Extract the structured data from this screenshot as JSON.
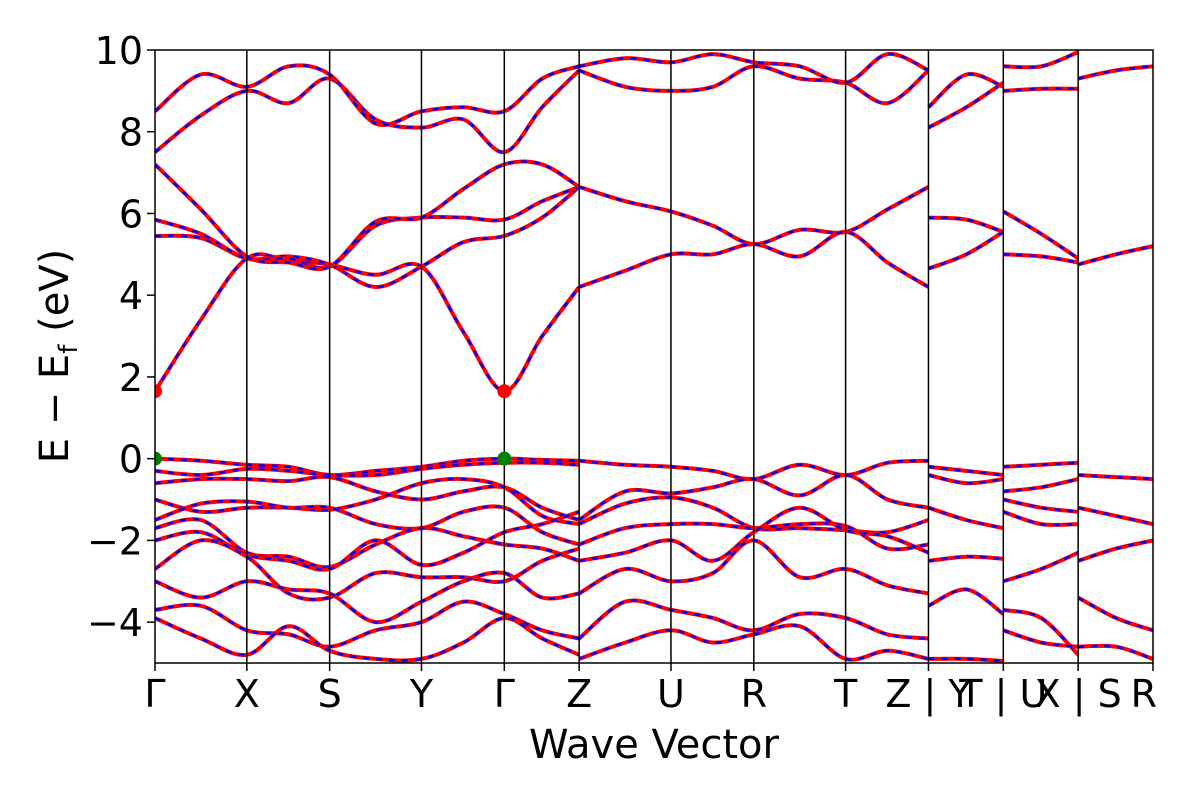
{
  "chart_data": {
    "type": "line",
    "xlabel": "Wave Vector",
    "ylabel_main": "E − E",
    "ylabel_sub": "f",
    "ylabel_unit": " (eV)",
    "ylim": [
      -5,
      10
    ],
    "yticks": [
      -4,
      -2,
      0,
      2,
      4,
      6,
      8,
      10
    ],
    "ytick_labels": [
      "−4",
      "−2",
      "0",
      "2",
      "4",
      "6",
      "8",
      "10"
    ],
    "xlim": [
      0,
      100
    ],
    "kpath": [
      {
        "label": "Γ",
        "x": 0
      },
      {
        "label": "X",
        "x": 9.2
      },
      {
        "label": "S",
        "x": 17.5
      },
      {
        "label": "Y",
        "x": 26.7
      },
      {
        "label": "Γ",
        "x": 35.0
      },
      {
        "label": "Z",
        "x": 42.5
      },
      {
        "label": "U",
        "x": 51.7
      },
      {
        "label": "R",
        "x": 60.0
      },
      {
        "label": "T",
        "x": 69.2
      },
      {
        "label": "Z|Y",
        "x": 77.5
      },
      {
        "label": "T|U",
        "x": 85.0
      },
      {
        "label": "X|S",
        "x": 92.5
      },
      {
        "label": "R",
        "x": 100
      }
    ],
    "series_colors": {
      "primary": "#ff0000",
      "overlay": "#0000ff"
    },
    "markers": [
      {
        "kind": "cbm",
        "x": 0,
        "y": 1.65,
        "color": "#ff0000"
      },
      {
        "kind": "cbm",
        "x": 35.0,
        "y": 1.65,
        "color": "#ff0000"
      },
      {
        "kind": "vbm",
        "x": 0,
        "y": 0.0,
        "color": "#008000"
      },
      {
        "kind": "vbm",
        "x": 35.0,
        "y": 0.0,
        "color": "#008000"
      }
    ],
    "bands": [
      {
        "x": [
          0,
          4.6,
          9.2,
          13.4,
          17.5,
          22.1,
          26.7,
          30.9,
          35.0,
          38.8,
          42.5
        ],
        "y": [
          1.65,
          3.4,
          4.9,
          4.85,
          4.75,
          4.5,
          4.7,
          3.1,
          1.65,
          3.0,
          4.2
        ]
      },
      {
        "x": [
          0,
          4.6,
          9.2,
          13.4,
          17.5,
          22.1,
          26.7,
          30.9,
          35.0,
          38.8,
          42.5
        ],
        "y": [
          5.45,
          5.4,
          4.9,
          4.95,
          4.75,
          4.2,
          4.7,
          5.3,
          5.45,
          5.9,
          6.65
        ]
      },
      {
        "x": [
          0,
          4.6,
          9.2,
          13.4,
          17.5,
          22.1,
          26.7,
          30.9,
          35.0,
          38.8,
          42.5
        ],
        "y": [
          5.85,
          5.5,
          4.9,
          4.9,
          4.7,
          5.7,
          5.9,
          5.9,
          5.85,
          6.3,
          6.65
        ]
      },
      {
        "x": [
          0,
          4.6,
          9.2,
          13.4,
          17.5,
          22.1,
          26.7,
          30.9,
          35.0,
          38.8,
          42.5
        ],
        "y": [
          7.2,
          6.1,
          4.95,
          4.8,
          4.7,
          5.8,
          5.9,
          6.6,
          7.2,
          7.2,
          6.65
        ]
      },
      {
        "x": [
          42.5,
          47.1,
          51.7,
          55.9,
          60.0,
          64.6,
          69.2,
          73.4,
          77.5
        ],
        "y": [
          6.65,
          6.3,
          6.05,
          5.7,
          5.25,
          5.6,
          5.55,
          6.1,
          6.65
        ]
      },
      {
        "x": [
          42.5,
          47.1,
          51.7,
          55.9,
          60.0,
          64.6,
          69.2,
          73.4,
          77.5
        ],
        "y": [
          4.2,
          4.6,
          5.0,
          5.0,
          5.25,
          4.95,
          5.55,
          4.8,
          4.2
        ]
      },
      {
        "x": [
          0,
          4.6,
          9.2,
          13.4,
          17.5,
          22.1,
          26.7,
          30.9,
          35.0,
          38.8,
          42.5
        ],
        "y": [
          7.5,
          8.4,
          9.0,
          8.7,
          9.3,
          8.3,
          8.1,
          8.3,
          7.5,
          8.6,
          9.5
        ]
      },
      {
        "x": [
          0,
          4.6,
          9.2,
          13.4,
          17.5,
          22.1,
          26.7,
          30.9,
          35.0,
          38.8,
          42.5
        ],
        "y": [
          8.5,
          9.4,
          9.1,
          9.6,
          9.4,
          8.2,
          8.5,
          8.6,
          8.5,
          9.3,
          9.6
        ]
      },
      {
        "x": [
          42.5,
          47.1,
          51.7,
          55.9,
          60.0,
          64.6,
          69.2,
          73.4,
          77.5
        ],
        "y": [
          9.5,
          9.1,
          9.0,
          9.1,
          9.6,
          9.3,
          9.2,
          8.7,
          9.5
        ]
      },
      {
        "x": [
          42.5,
          47.1,
          51.7,
          55.9,
          60.0,
          64.6,
          69.2,
          73.4,
          77.5
        ],
        "y": [
          9.6,
          9.8,
          9.7,
          9.9,
          9.7,
          9.6,
          9.2,
          9.9,
          9.5
        ]
      },
      {
        "x": [
          0,
          4.6,
          9.2,
          13.4,
          17.5,
          22.1,
          26.7,
          30.9,
          35.0,
          38.8,
          42.5
        ],
        "y": [
          0.0,
          -0.05,
          -0.15,
          -0.2,
          -0.4,
          -0.3,
          -0.2,
          -0.05,
          0.0,
          -0.03,
          -0.05
        ]
      },
      {
        "x": [
          0,
          4.6,
          9.2,
          13.4,
          17.5,
          22.1,
          26.7,
          30.9,
          35.0,
          38.8,
          42.5
        ],
        "y": [
          -0.3,
          -0.4,
          -0.25,
          -0.3,
          -0.4,
          -0.4,
          -0.25,
          -0.15,
          -0.1,
          -0.1,
          -0.15
        ]
      },
      {
        "x": [
          0,
          4.6,
          9.2,
          13.4,
          17.5,
          22.1,
          26.7,
          30.9,
          35.0,
          38.8,
          42.5
        ],
        "y": [
          -0.6,
          -0.5,
          -0.5,
          -0.55,
          -0.45,
          -0.8,
          -1.0,
          -0.8,
          -0.7,
          -1.2,
          -1.5
        ]
      },
      {
        "x": [
          0,
          4.6,
          9.2,
          13.4,
          17.5,
          22.1,
          26.7,
          30.9,
          35.0,
          38.8,
          42.5
        ],
        "y": [
          -1.0,
          -1.3,
          -1.2,
          -1.2,
          -1.25,
          -1.0,
          -0.6,
          -0.5,
          -0.7,
          -1.4,
          -1.6
        ]
      },
      {
        "x": [
          0,
          4.6,
          9.2,
          13.4,
          17.5,
          22.1,
          26.7,
          30.9,
          35.0,
          38.8,
          42.5
        ],
        "y": [
          -1.5,
          -1.1,
          -1.05,
          -1.2,
          -1.2,
          -1.6,
          -1.7,
          -1.3,
          -1.2,
          -1.8,
          -2.1
        ]
      },
      {
        "x": [
          0,
          4.6,
          9.2,
          13.4,
          17.5,
          22.1,
          26.7,
          30.9,
          35.0,
          38.8,
          42.5
        ],
        "y": [
          -1.7,
          -1.5,
          -2.3,
          -2.4,
          -2.65,
          -2.1,
          -1.7,
          -1.9,
          -2.1,
          -2.2,
          -2.5
        ]
      },
      {
        "x": [
          0,
          4.6,
          9.2,
          13.4,
          17.5,
          22.1,
          26.7,
          30.9,
          35.0,
          38.8,
          42.5
        ],
        "y": [
          -2.0,
          -1.8,
          -2.35,
          -2.5,
          -2.7,
          -2.0,
          -2.6,
          -2.3,
          -1.8,
          -1.6,
          -1.3
        ]
      },
      {
        "x": [
          0,
          4.6,
          9.2,
          13.4,
          17.5,
          22.1,
          26.7,
          30.9,
          35.0,
          38.8,
          42.5
        ],
        "y": [
          -2.7,
          -2.0,
          -2.4,
          -3.3,
          -3.4,
          -2.8,
          -2.9,
          -2.9,
          -3.0,
          -2.5,
          -2.2
        ]
      },
      {
        "x": [
          0,
          4.6,
          9.2,
          13.4,
          17.5,
          22.1,
          26.7,
          30.9,
          35.0,
          38.8,
          42.5
        ],
        "y": [
          -3.0,
          -3.4,
          -3.0,
          -3.2,
          -3.3,
          -4.0,
          -3.5,
          -3.0,
          -2.8,
          -3.4,
          -3.3
        ]
      },
      {
        "x": [
          0,
          4.6,
          9.2,
          13.4,
          17.5,
          22.1,
          26.7,
          30.9,
          35.0,
          38.8,
          42.5
        ],
        "y": [
          -3.7,
          -3.6,
          -4.2,
          -4.3,
          -4.6,
          -4.2,
          -4.0,
          -3.5,
          -3.8,
          -4.2,
          -4.4
        ]
      },
      {
        "x": [
          0,
          4.6,
          9.2,
          13.4,
          17.5,
          22.1,
          26.7,
          30.9,
          35.0,
          38.8,
          42.5
        ],
        "y": [
          -3.9,
          -4.4,
          -4.8,
          -4.1,
          -4.7,
          -4.9,
          -4.9,
          -4.5,
          -3.9,
          -4.4,
          -4.8
        ]
      },
      {
        "x": [
          42.5,
          47.1,
          51.7,
          55.9,
          60.0,
          64.6,
          69.2,
          73.4,
          77.5
        ],
        "y": [
          -0.05,
          -0.15,
          -0.2,
          -0.3,
          -0.5,
          -0.15,
          -0.4,
          -0.1,
          -0.05
        ]
      },
      {
        "x": [
          42.5,
          47.1,
          51.7,
          55.9,
          60.0,
          64.6,
          69.2,
          73.4,
          77.5
        ],
        "y": [
          -1.5,
          -0.8,
          -0.85,
          -0.7,
          -0.5,
          -0.9,
          -0.4,
          -1.0,
          -1.2
        ]
      },
      {
        "x": [
          42.5,
          47.1,
          51.7,
          55.9,
          60.0,
          64.6,
          69.2,
          73.4,
          77.5
        ],
        "y": [
          -1.6,
          -1.1,
          -0.95,
          -1.2,
          -1.7,
          -1.7,
          -1.75,
          -1.8,
          -1.5
        ]
      },
      {
        "x": [
          42.5,
          47.1,
          51.7,
          55.9,
          60.0,
          64.6,
          69.2,
          73.4,
          77.5
        ],
        "y": [
          -2.1,
          -1.7,
          -1.6,
          -1.6,
          -1.7,
          -1.6,
          -1.65,
          -2.2,
          -2.1
        ]
      },
      {
        "x": [
          42.5,
          47.1,
          51.7,
          55.9,
          60.0,
          64.6,
          69.2,
          73.4,
          77.5
        ],
        "y": [
          -2.5,
          -2.3,
          -2.0,
          -2.5,
          -1.8,
          -1.2,
          -1.75,
          -1.9,
          -2.3
        ]
      },
      {
        "x": [
          42.5,
          47.1,
          51.7,
          55.9,
          60.0,
          64.6,
          69.2,
          73.4,
          77.5
        ],
        "y": [
          -3.3,
          -2.7,
          -3.0,
          -2.8,
          -2.0,
          -2.9,
          -2.7,
          -3.1,
          -3.3
        ]
      },
      {
        "x": [
          42.5,
          47.1,
          51.7,
          55.9,
          60.0,
          64.6,
          69.2,
          73.4,
          77.5
        ],
        "y": [
          -4.4,
          -3.5,
          -3.7,
          -3.9,
          -4.2,
          -3.8,
          -3.9,
          -4.3,
          -4.4
        ]
      },
      {
        "x": [
          42.5,
          47.1,
          51.7,
          55.9,
          60.0,
          64.6,
          69.2,
          73.4,
          77.5
        ],
        "y": [
          -4.9,
          -4.5,
          -4.2,
          -4.5,
          -4.3,
          -4.1,
          -4.9,
          -4.7,
          -4.9
        ]
      },
      {
        "x": [
          77.5,
          81.3,
          85.0
        ],
        "y": [
          5.9,
          5.85,
          5.55
        ]
      },
      {
        "x": [
          77.5,
          81.3,
          85.0
        ],
        "y": [
          4.65,
          5.0,
          5.55
        ]
      },
      {
        "x": [
          77.5,
          81.3,
          85.0
        ],
        "y": [
          8.1,
          8.6,
          9.2
        ]
      },
      {
        "x": [
          77.5,
          81.3,
          85.0
        ],
        "y": [
          8.6,
          9.4,
          9.1
        ]
      },
      {
        "x": [
          77.5,
          81.3,
          85.0
        ],
        "y": [
          -0.2,
          -0.3,
          -0.4
        ]
      },
      {
        "x": [
          77.5,
          81.3,
          85.0
        ],
        "y": [
          -0.4,
          -0.6,
          -0.5
        ]
      },
      {
        "x": [
          77.5,
          81.3,
          85.0
        ],
        "y": [
          -1.2,
          -1.5,
          -1.7
        ]
      },
      {
        "x": [
          77.5,
          81.3,
          85.0
        ],
        "y": [
          -2.5,
          -2.4,
          -2.45
        ]
      },
      {
        "x": [
          77.5,
          81.3,
          85.0
        ],
        "y": [
          -3.6,
          -3.2,
          -3.8
        ]
      },
      {
        "x": [
          77.5,
          81.3,
          85.0
        ],
        "y": [
          -4.9,
          -4.9,
          -4.95
        ]
      },
      {
        "x": [
          85.0,
          88.8,
          92.5
        ],
        "y": [
          6.05,
          5.5,
          4.9
        ]
      },
      {
        "x": [
          85.0,
          88.8,
          92.5
        ],
        "y": [
          5.0,
          4.95,
          4.8
        ]
      },
      {
        "x": [
          85.0,
          88.8,
          92.5
        ],
        "y": [
          9.6,
          9.6,
          9.95
        ]
      },
      {
        "x": [
          85.0,
          88.8,
          92.5
        ],
        "y": [
          9.0,
          9.05,
          9.05
        ]
      },
      {
        "x": [
          85.0,
          88.8,
          92.5
        ],
        "y": [
          -0.2,
          -0.15,
          -0.1
        ]
      },
      {
        "x": [
          85.0,
          88.8,
          92.5
        ],
        "y": [
          -0.8,
          -0.7,
          -0.5
        ]
      },
      {
        "x": [
          85.0,
          88.8,
          92.5
        ],
        "y": [
          -1.0,
          -1.2,
          -1.3
        ]
      },
      {
        "x": [
          85.0,
          88.8,
          92.5
        ],
        "y": [
          -1.3,
          -1.6,
          -1.6
        ]
      },
      {
        "x": [
          85.0,
          88.8,
          92.5
        ],
        "y": [
          -3.0,
          -2.7,
          -2.3
        ]
      },
      {
        "x": [
          85.0,
          88.8,
          92.5
        ],
        "y": [
          -3.7,
          -3.9,
          -4.8
        ]
      },
      {
        "x": [
          85.0,
          88.8,
          92.5
        ],
        "y": [
          -4.2,
          -4.5,
          -4.6
        ]
      },
      {
        "x": [
          92.5,
          96.3,
          100
        ],
        "y": [
          9.3,
          9.5,
          9.6
        ]
      },
      {
        "x": [
          92.5,
          96.3,
          100
        ],
        "y": [
          4.75,
          5.0,
          5.2
        ]
      },
      {
        "x": [
          92.5,
          96.3,
          100
        ],
        "y": [
          -0.4,
          -0.45,
          -0.5
        ]
      },
      {
        "x": [
          92.5,
          96.3,
          100
        ],
        "y": [
          -1.2,
          -1.4,
          -1.6
        ]
      },
      {
        "x": [
          92.5,
          96.3,
          100
        ],
        "y": [
          -2.5,
          -2.2,
          -2.0
        ]
      },
      {
        "x": [
          92.5,
          96.3,
          100
        ],
        "y": [
          -3.4,
          -3.9,
          -4.2
        ]
      },
      {
        "x": [
          92.5,
          96.3,
          100
        ],
        "y": [
          -4.6,
          -4.6,
          -4.9
        ]
      }
    ]
  }
}
